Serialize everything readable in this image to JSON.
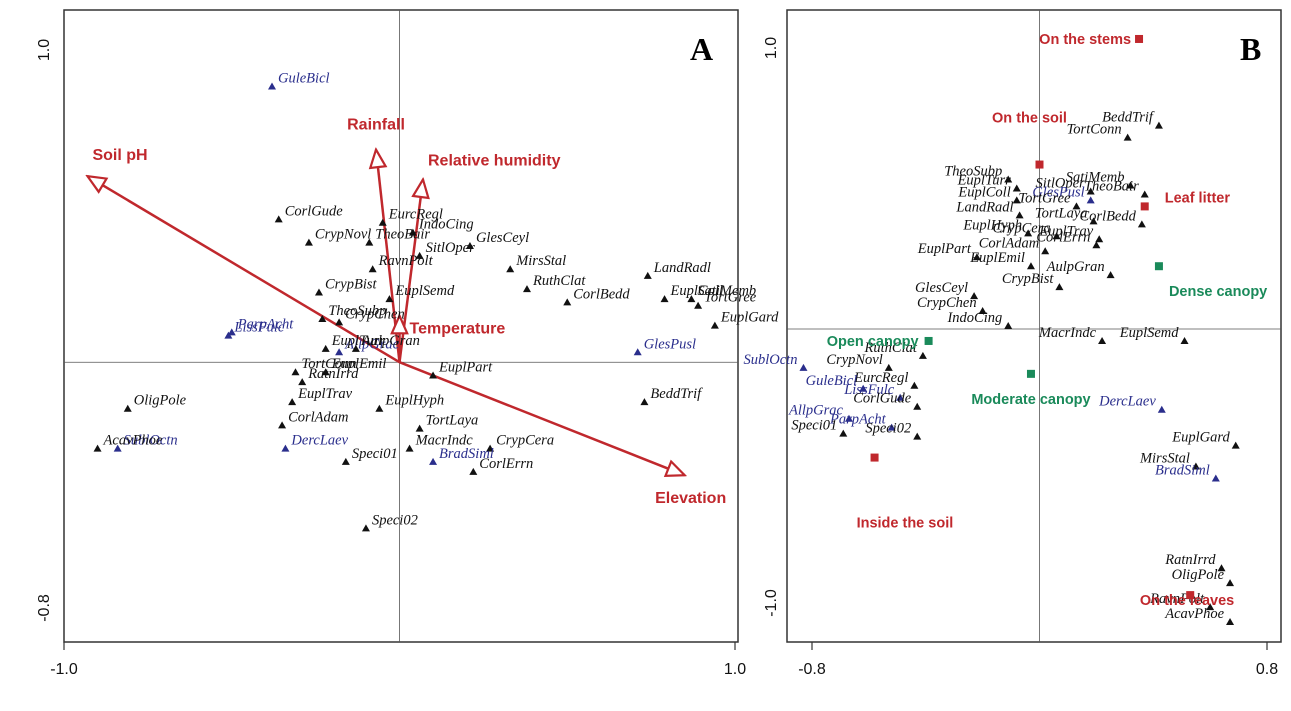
{
  "colors": {
    "species": "#111111",
    "special_species": "#2a2e8c",
    "environment": "#c0282d",
    "canopy": "#1a8a5a",
    "substrate": "#c0282d",
    "axes": "#555555"
  },
  "chart_data": [
    {
      "type": "scatter",
      "panel_label": "A",
      "xlim": [
        -1.0,
        1.0
      ],
      "ylim": [
        -0.8,
        1.0
      ],
      "tick_labels": {
        "y_top": "1.0",
        "y_bottom": "-0.8",
        "x_left": "-1.0",
        "x_right": "1.0"
      },
      "species": [
        {
          "label": "GuleBicl",
          "x": -0.38,
          "y": 0.83,
          "blue": true
        },
        {
          "label": "CorlGude",
          "x": -0.36,
          "y": 0.43
        },
        {
          "label": "EurcRegl",
          "x": -0.05,
          "y": 0.42
        },
        {
          "label": "IndoCing",
          "x": 0.04,
          "y": 0.39
        },
        {
          "label": "CrypNovl",
          "x": -0.27,
          "y": 0.36
        },
        {
          "label": "TheoBair",
          "x": -0.09,
          "y": 0.36
        },
        {
          "label": "GlesCeyl",
          "x": 0.21,
          "y": 0.35
        },
        {
          "label": "SitlOper",
          "x": 0.06,
          "y": 0.32
        },
        {
          "label": "RavnPolt",
          "x": -0.08,
          "y": 0.28
        },
        {
          "label": "MirsStal",
          "x": 0.33,
          "y": 0.28
        },
        {
          "label": "LandRadl",
          "x": 0.74,
          "y": 0.26
        },
        {
          "label": "CrypBist",
          "x": -0.24,
          "y": 0.21
        },
        {
          "label": "EuplSemd",
          "x": -0.03,
          "y": 0.19
        },
        {
          "label": "RuthClat",
          "x": 0.38,
          "y": 0.22
        },
        {
          "label": "EuplColl",
          "x": 0.79,
          "y": 0.19
        },
        {
          "label": "SatiMemb",
          "x": 0.87,
          "y": 0.19
        },
        {
          "label": "TortGree",
          "x": 0.89,
          "y": 0.17
        },
        {
          "label": "CorlBedd",
          "x": 0.5,
          "y": 0.18
        },
        {
          "label": "CrypChen",
          "x": -0.18,
          "y": 0.12
        },
        {
          "label": "TheoSubp",
          "x": -0.23,
          "y": 0.13
        },
        {
          "label": "LissFulc",
          "x": -0.51,
          "y": 0.08,
          "blue": true
        },
        {
          "label": "ParpAcht",
          "x": -0.5,
          "y": 0.09,
          "blue": true
        },
        {
          "label": "EuplGard",
          "x": 0.94,
          "y": 0.11
        },
        {
          "label": "AllpGrac",
          "x": -0.18,
          "y": 0.03,
          "blue": true
        },
        {
          "label": "AulpGran",
          "x": -0.13,
          "y": 0.04
        },
        {
          "label": "EuplTurr",
          "x": -0.22,
          "y": 0.04
        },
        {
          "label": "GlesPusl",
          "x": 0.71,
          "y": 0.03,
          "blue": true
        },
        {
          "label": "EuplPart",
          "x": 0.1,
          "y": -0.04
        },
        {
          "label": "TortConn",
          "x": -0.31,
          "y": -0.03
        },
        {
          "label": "RatnIrrd",
          "x": -0.29,
          "y": -0.06
        },
        {
          "label": "EuplEmil",
          "x": -0.22,
          "y": -0.03
        },
        {
          "label": "EuplTrav",
          "x": -0.32,
          "y": -0.12
        },
        {
          "label": "EuplHyph",
          "x": -0.06,
          "y": -0.14
        },
        {
          "label": "BeddTrif",
          "x": 0.73,
          "y": -0.12
        },
        {
          "label": "OligPole",
          "x": -0.81,
          "y": -0.14
        },
        {
          "label": "CorlAdam",
          "x": -0.35,
          "y": -0.19
        },
        {
          "label": "TortLaya",
          "x": 0.06,
          "y": -0.2
        },
        {
          "label": "SublOctn",
          "x": -0.84,
          "y": -0.26,
          "blue": true
        },
        {
          "label": "DercLaev",
          "x": -0.34,
          "y": -0.26,
          "blue": true
        },
        {
          "label": "MacrIndc",
          "x": 0.03,
          "y": -0.26
        },
        {
          "label": "CrypCera",
          "x": 0.27,
          "y": -0.26
        },
        {
          "label": "AcavPhoe",
          "x": -0.9,
          "y": -0.26
        },
        {
          "label": "Speci01",
          "x": -0.16,
          "y": -0.3
        },
        {
          "label": "BradSiml",
          "x": 0.1,
          "y": -0.3,
          "blue": true
        },
        {
          "label": "CorlErrn",
          "x": 0.22,
          "y": -0.33
        },
        {
          "label": "Speci02",
          "x": -0.1,
          "y": -0.5
        }
      ],
      "environment": [
        {
          "label": "Rainfall",
          "x": -0.07,
          "y": 0.64
        },
        {
          "label": "Relative humidity",
          "x": 0.07,
          "y": 0.55
        },
        {
          "label": "Soil pH",
          "x": -0.93,
          "y": 0.56
        },
        {
          "label": "Temperature",
          "x": 0.0,
          "y": 0.14
        },
        {
          "label": "Elevation",
          "x": 0.85,
          "y": -0.34
        }
      ]
    },
    {
      "type": "scatter",
      "panel_label": "B",
      "xlim": [
        -0.8,
        0.8
      ],
      "ylim": [
        -1.0,
        1.0
      ],
      "tick_labels": {
        "y_top": "1.0",
        "y_bottom": "-1.0",
        "x_left": "-0.8",
        "x_right": "0.8"
      },
      "species": [
        {
          "label": "BeddTrif",
          "x": 0.42,
          "y": 0.68
        },
        {
          "label": "TortConn",
          "x": 0.31,
          "y": 0.64
        },
        {
          "label": "TheoSubp",
          "x": -0.11,
          "y": 0.5
        },
        {
          "label": "SatiMemb",
          "x": 0.32,
          "y": 0.48
        },
        {
          "label": "EuplTurr",
          "x": -0.08,
          "y": 0.47
        },
        {
          "label": "SitlOper",
          "x": 0.18,
          "y": 0.46
        },
        {
          "label": "GlesPusl",
          "x": 0.18,
          "y": 0.43,
          "blue": true
        },
        {
          "label": "TheoBair",
          "x": 0.37,
          "y": 0.45
        },
        {
          "label": "EuplColl",
          "x": -0.08,
          "y": 0.43
        },
        {
          "label": "TortGree",
          "x": 0.13,
          "y": 0.41
        },
        {
          "label": "LandRadl",
          "x": -0.07,
          "y": 0.38
        },
        {
          "label": "TortLaya",
          "x": 0.19,
          "y": 0.36
        },
        {
          "label": "CorlBedd",
          "x": 0.36,
          "y": 0.35
        },
        {
          "label": "EuplHyph",
          "x": -0.04,
          "y": 0.32
        },
        {
          "label": "CrypCera",
          "x": 0.06,
          "y": 0.31
        },
        {
          "label": "EuplTrav",
          "x": 0.21,
          "y": 0.3
        },
        {
          "label": "CorlErrn",
          "x": 0.2,
          "y": 0.28
        },
        {
          "label": "CorlAdam",
          "x": 0.02,
          "y": 0.26
        },
        {
          "label": "EuplPart",
          "x": -0.22,
          "y": 0.24
        },
        {
          "label": "EuplEmil",
          "x": -0.03,
          "y": 0.21
        },
        {
          "label": "AulpGran",
          "x": 0.25,
          "y": 0.18
        },
        {
          "label": "CrypBist",
          "x": 0.07,
          "y": 0.14
        },
        {
          "label": "GlesCeyl",
          "x": -0.23,
          "y": 0.11
        },
        {
          "label": "CrypChen",
          "x": -0.2,
          "y": 0.06
        },
        {
          "label": "IndoCing",
          "x": -0.11,
          "y": 0.01
        },
        {
          "label": "MacrIndc",
          "x": 0.22,
          "y": -0.04
        },
        {
          "label": "EuplSemd",
          "x": 0.51,
          "y": -0.04
        },
        {
          "label": "RuthClat",
          "x": -0.41,
          "y": -0.09
        },
        {
          "label": "SublOctn",
          "x": -0.83,
          "y": -0.13,
          "blue": true
        },
        {
          "label": "CrypNovl",
          "x": -0.53,
          "y": -0.13
        },
        {
          "label": "EurcRegl",
          "x": -0.44,
          "y": -0.19
        },
        {
          "label": "GuleBicl",
          "x": -0.62,
          "y": -0.2,
          "blue": true
        },
        {
          "label": "LissFulc",
          "x": -0.49,
          "y": -0.23,
          "blue": true
        },
        {
          "label": "DercLaev",
          "x": 0.43,
          "y": -0.27,
          "blue": true
        },
        {
          "label": "CorlGude",
          "x": -0.43,
          "y": -0.26
        },
        {
          "label": "AllpGrac",
          "x": -0.67,
          "y": -0.3,
          "blue": true
        },
        {
          "label": "ParpAcht",
          "x": -0.52,
          "y": -0.33,
          "blue": true
        },
        {
          "label": "Speci01",
          "x": -0.69,
          "y": -0.35
        },
        {
          "label": "Speci02",
          "x": -0.43,
          "y": -0.36
        },
        {
          "label": "EuplGard",
          "x": 0.69,
          "y": -0.39
        },
        {
          "label": "MirsStal",
          "x": 0.55,
          "y": -0.46
        },
        {
          "label": "BradSiml",
          "x": 0.62,
          "y": -0.5,
          "blue": true
        },
        {
          "label": "RatnIrrd",
          "x": 0.64,
          "y": -0.8
        },
        {
          "label": "OligPole",
          "x": 0.67,
          "y": -0.85
        },
        {
          "label": "RavnPolt",
          "x": 0.6,
          "y": -0.93
        },
        {
          "label": "AcavPhoe",
          "x": 0.67,
          "y": -0.98
        }
      ],
      "substrate": [
        {
          "label": "On the stems",
          "x": 0.35,
          "y": 0.97
        },
        {
          "label": "On the soil",
          "x": 0.0,
          "y": 0.55
        },
        {
          "label": "Leaf litter",
          "x": 0.37,
          "y": 0.41
        },
        {
          "label": "Inside the soil",
          "x": -0.58,
          "y": -0.43
        },
        {
          "label": "On the leaves",
          "x": 0.53,
          "y": -0.89
        }
      ],
      "canopy": [
        {
          "label": "Dense canopy",
          "x": 0.42,
          "y": 0.21
        },
        {
          "label": "Open canopy",
          "x": -0.39,
          "y": -0.04
        },
        {
          "label": "Moderate canopy",
          "x": -0.03,
          "y": -0.15
        }
      ]
    }
  ]
}
